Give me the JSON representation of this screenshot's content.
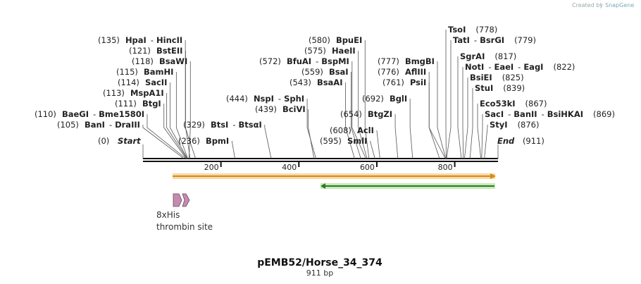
{
  "credit": {
    "prefix": "Created by",
    "brand": "SnapGene"
  },
  "map": {
    "title": "pEMB52/Horse_34_374",
    "length_label": "911 bp",
    "length": 911,
    "ticks": [
      200,
      400,
      600,
      800
    ],
    "start_label": {
      "pos": "(0)",
      "name": "Start"
    },
    "end_label": {
      "pos": "(911)",
      "name": "End"
    }
  },
  "sites": [
    {
      "pos": 135,
      "label": "(135)",
      "names": [
        "HpaI",
        "HincII"
      ]
    },
    {
      "pos": 121,
      "label": "(121)",
      "names": [
        "BstEII"
      ]
    },
    {
      "pos": 118,
      "label": "(118)",
      "names": [
        "BsaWI"
      ]
    },
    {
      "pos": 115,
      "label": "(115)",
      "names": [
        "BamHI"
      ]
    },
    {
      "pos": 114,
      "label": "(114)",
      "names": [
        "SacII"
      ]
    },
    {
      "pos": 113,
      "label": "(113)",
      "names": [
        "MspA1I"
      ]
    },
    {
      "pos": 111,
      "label": "(111)",
      "names": [
        "BtgI"
      ]
    },
    {
      "pos": 110,
      "label": "(110)",
      "names": [
        "BaeGI",
        "Bme1580I"
      ]
    },
    {
      "pos": 105,
      "label": "(105)",
      "names": [
        "BanI",
        "DraIII"
      ]
    },
    {
      "pos": 236,
      "label": "(236)",
      "names": [
        "BpmI"
      ]
    },
    {
      "pos": 329,
      "label": "(329)",
      "names": [
        "BtsI",
        "BtsαI"
      ]
    },
    {
      "pos": 444,
      "label": "(444)",
      "names": [
        "NspI",
        "SphI"
      ]
    },
    {
      "pos": 439,
      "label": "(439)",
      "names": [
        "BciVI"
      ]
    },
    {
      "pos": 580,
      "label": "(580)",
      "names": [
        "BpuEI"
      ]
    },
    {
      "pos": 575,
      "label": "(575)",
      "names": [
        "HaeII"
      ]
    },
    {
      "pos": 572,
      "label": "(572)",
      "names": [
        "BfuAI",
        "BspMI"
      ]
    },
    {
      "pos": 559,
      "label": "(559)",
      "names": [
        "BsaI"
      ]
    },
    {
      "pos": 543,
      "label": "(543)",
      "names": [
        "BsaAI"
      ]
    },
    {
      "pos": 692,
      "label": "(692)",
      "names": [
        "BglI"
      ]
    },
    {
      "pos": 654,
      "label": "(654)",
      "names": [
        "BtgZI"
      ]
    },
    {
      "pos": 608,
      "label": "(608)",
      "names": [
        "AclI"
      ]
    },
    {
      "pos": 595,
      "label": "(595)",
      "names": [
        "SmlI"
      ]
    },
    {
      "pos": 777,
      "label": "(777)",
      "names": [
        "BmgBI"
      ]
    },
    {
      "pos": 776,
      "label": "(776)",
      "names": [
        "AflIII"
      ]
    },
    {
      "pos": 761,
      "label": "(761)",
      "names": [
        "PsiI"
      ]
    },
    {
      "pos": 778,
      "label": "(778)",
      "names": [
        "TsoI"
      ]
    },
    {
      "pos": 779,
      "label": "(779)",
      "names": [
        "TatI",
        "BsrGI"
      ]
    },
    {
      "pos": 817,
      "label": "(817)",
      "names": [
        "SgrAI"
      ]
    },
    {
      "pos": 822,
      "label": "(822)",
      "names": [
        "NotI",
        "EaeI",
        "EagI"
      ]
    },
    {
      "pos": 825,
      "label": "(825)",
      "names": [
        "BsiEI"
      ]
    },
    {
      "pos": 839,
      "label": "(839)",
      "names": [
        "StuI"
      ]
    },
    {
      "pos": 867,
      "label": "(867)",
      "names": [
        "Eco53kI"
      ]
    },
    {
      "pos": 869,
      "label": "(869)",
      "names": [
        "SacI",
        "BanII",
        "BsiHKAI"
      ]
    },
    {
      "pos": 876,
      "label": "(876)",
      "names": [
        "StyI"
      ]
    }
  ],
  "features": {
    "orange_bar": {
      "start": 75,
      "end": 911,
      "color": "#f0a020"
    },
    "green_arrow": {
      "start": 460,
      "end": 911,
      "color": "#2a8a2a"
    },
    "his_tag": {
      "label": "8xHis",
      "color": "#c08ab0"
    },
    "thrombin": {
      "label": "thrombin site",
      "color": "#c08ab0"
    }
  }
}
